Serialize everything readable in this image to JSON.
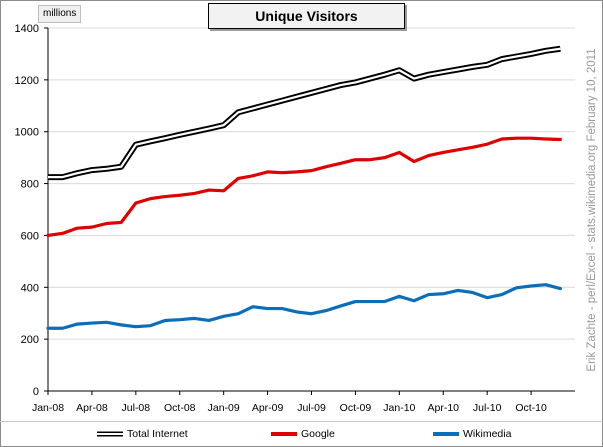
{
  "chart_data": {
    "type": "line",
    "title": "Unique Visitors",
    "unit_label": "millions",
    "side_note": "Erik Zachte - perl/Excel - stats.wikimedia.org        February 10, 2011",
    "x": [
      "Jan-08",
      "Feb-08",
      "Mar-08",
      "Apr-08",
      "May-08",
      "Jun-08",
      "Jul-08",
      "Aug-08",
      "Sep-08",
      "Oct-08",
      "Nov-08",
      "Dec-08",
      "Jan-09",
      "Feb-09",
      "Mar-09",
      "Apr-09",
      "May-09",
      "Jun-09",
      "Jul-09",
      "Aug-09",
      "Sep-09",
      "Oct-09",
      "Nov-09",
      "Dec-09",
      "Jan-10",
      "Feb-10",
      "Mar-10",
      "Apr-10",
      "May-10",
      "Jun-10",
      "Jul-10",
      "Aug-10",
      "Sep-10",
      "Oct-10",
      "Nov-10",
      "Dec-10"
    ],
    "x_tick_labels": [
      "Jan-08",
      "Apr-08",
      "Jul-08",
      "Oct-08",
      "Jan-09",
      "Apr-09",
      "Jul-09",
      "Oct-09",
      "Jan-10",
      "Apr-10",
      "Jul-10",
      "Oct-10"
    ],
    "ylim": [
      0,
      1400
    ],
    "y_ticks": [
      "0",
      "200",
      "400",
      "600",
      "800",
      "1000",
      "1200",
      "1400"
    ],
    "grid": true,
    "legend_position": "bottom",
    "series": [
      {
        "name": "Total Internet",
        "color": "#000000",
        "style": "double-line",
        "values": [
          825,
          825,
          840,
          852,
          857,
          865,
          950,
          963,
          975,
          988,
          1000,
          1012,
          1025,
          1075,
          1090,
          1105,
          1120,
          1135,
          1150,
          1165,
          1180,
          1190,
          1205,
          1220,
          1237,
          1205,
          1220,
          1230,
          1240,
          1250,
          1258,
          1280,
          1290,
          1300,
          1312,
          1320
        ]
      },
      {
        "name": "Google",
        "color": "#e00000",
        "style": "line",
        "values": [
          600,
          608,
          628,
          632,
          646,
          650,
          725,
          742,
          750,
          755,
          762,
          775,
          772,
          820,
          830,
          845,
          842,
          845,
          850,
          865,
          878,
          892,
          892,
          900,
          920,
          885,
          908,
          920,
          930,
          940,
          952,
          972,
          975,
          975,
          972,
          970
        ]
      },
      {
        "name": "Wikimedia",
        "color": "#0a6fb8",
        "style": "line",
        "values": [
          242,
          242,
          258,
          262,
          265,
          255,
          248,
          252,
          272,
          275,
          280,
          272,
          288,
          298,
          325,
          318,
          318,
          305,
          298,
          310,
          328,
          345,
          345,
          345,
          365,
          348,
          372,
          375,
          388,
          380,
          360,
          372,
          398,
          405,
          410,
          395
        ]
      }
    ]
  }
}
